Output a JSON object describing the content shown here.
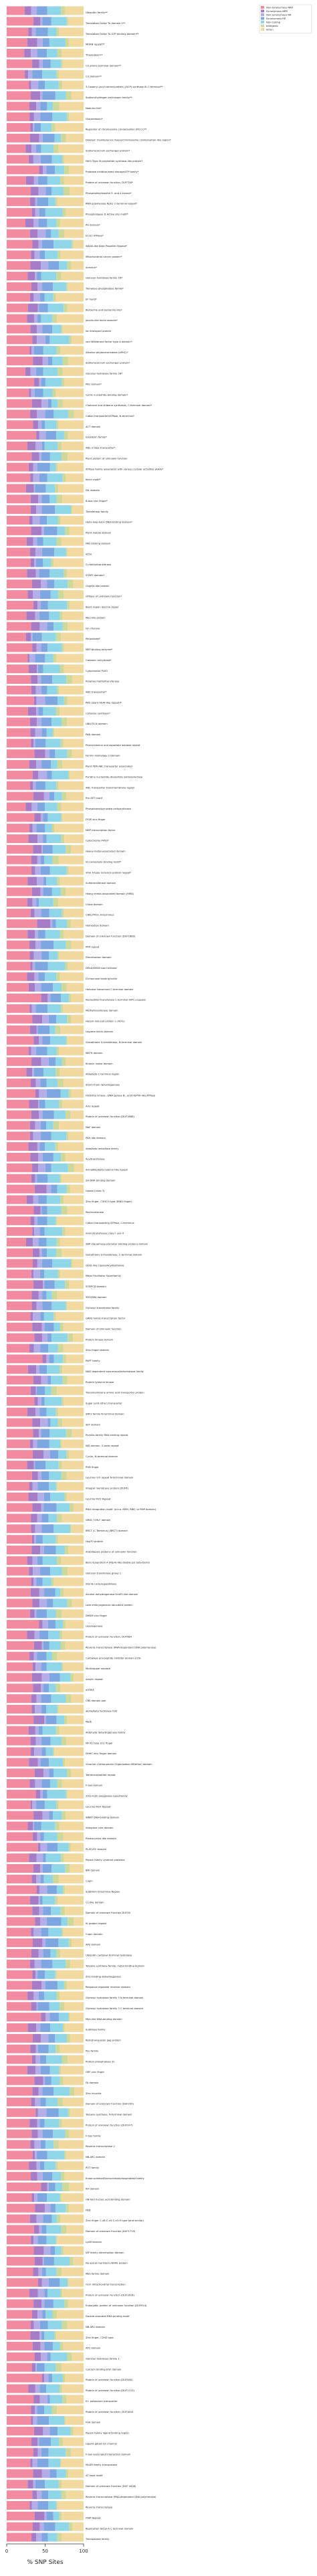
{
  "chart_data": {
    "type": "bar",
    "orientation": "horizontal",
    "stacked": true,
    "xlabel": "% SNP Sites",
    "xlim": [
      0,
      100
    ],
    "xticks": [
      0,
      50,
      100
    ],
    "legend_position": "top-right",
    "series": [
      {
        "name": "Non-synonymous NRR",
        "color": "#f28ba0"
      },
      {
        "name": "Synonymous NRR",
        "color": "#a67cc6"
      },
      {
        "name": "Non-synonymous RR",
        "color": "#b4aee8"
      },
      {
        "name": "Synonymous RR",
        "color": "#7ea6e0"
      },
      {
        "name": "Non-Coding",
        "color": "#8fd6e8"
      },
      {
        "name": "Intergenic",
        "color": "#cdd89a"
      },
      {
        "name": "Intron",
        "color": "#f1d9a0"
      }
    ],
    "categories": [
      "Ubiquitin family**",
      "Translation factor Tu domain 2**",
      "Translation factor Tu GTP binding domain**",
      "MORN repeat**",
      "Thioredoxin**",
      "Cir amino terminal domain**",
      "Cir domain**",
      "3-Oxoacyl-(acyl-carrier-protein) (ACP) synthase III C terminal**",
      "Sodium/hydrogen exchanger family**",
      "Nodulin-like*",
      "Glutaredoxin*",
      "Regulator of chromosome condensation (RCC1)**",
      "Deleted: maintenance (hypo)/chromosome condensation-like region*",
      "Sodium/calcium exchanger protein*",
      "FAE1/Type III polyketide synthase-like protein*",
      "Protease inhibitor/seed storage/LTP family*",
      "Protein of unknown function, DUF726*",
      "Phosphatidylinositol 3- and 4-kinase*",
      "RNA polymerase Rpb1 C-terminal repeat*",
      "Phospholipase D Active site motif*",
      "PH domain*",
      "E1-E2 ATPase*",
      "WD40-like Beta Propeller Repeat*",
      "Mitochondrial carrier protein*",
      "Annexin*",
      "Glycosyl hydrolase family 16*",
      "Trehalose-phosphatase family*",
      "EF hand*",
      "Berberine and berberine like*",
      "Jacalin-like lectin domain*",
      "Ion transport protein",
      "von Willebrand factor type A domain*",
      "Alkaline phytoceramidase (aPHC)*",
      "Sodium/calcium exchanger protein*",
      "Glycosyl hydrolase family 28*",
      "PB1 domain*",
      "Cyclic nucleotide-binding domain*",
      "Chalcone and stilbene synthases, C-terminal domain*",
      "Cation transporter/ATPase, N-terminus*",
      "ACT domain",
      "Exostosin family*",
      "ABC-2 type transporter*",
      "Plant protein of unknown function",
      "ATPase family associated with various cellular activities (AAA)*",
      "Kelch motif*",
      "DIL domain",
      "B-box zinc finger*",
      "Transferase family",
      "Helix-loop-helix DNA-binding domain*",
      "Plant mobile domain",
      "FAD binding domain",
      "Actin",
      "O-methyltransferase",
      "START domain*",
      "Ovgent-like protein",
      "GTPase of unknown function*",
      "Basic region leucine zipper",
      "Myo-like protein",
      "Ion channel",
      "Peroxidase*",
      "MIIP-binding enzyme*",
      "Carbonic anhydrase*",
      "Cytochrome P450",
      "Putative methyltransferase",
      "ABC transporter*",
      "PB5 (plant HEAT-like repeat)*",
      "Cellulose synthase*",
      "UBA/TS-N domain",
      "PAN domain",
      "Phenylalanine and aspartate oxidase repeat",
      "Formin Homology 2 Domain",
      "Plant PDR ABC transporter associated",
      "Pyridine nucleotide-disulphide oxidoreductase",
      "ABC transporter transmembrane region",
      "Pre-SET motif",
      "Phosphoenolpyruvate carboxykinase",
      "FYVE zinc finger",
      "NDP transcription factor",
      "Cytochrome P450*",
      "Heavy-metal-associated domain",
      "IQ calmodulin-binding motif*",
      "Viral A-type inclusion protein repeat*",
      "Sulfotransferase domain",
      "Heavy-metal-associated domain (HMA)",
      "U-box domain",
      "CRAL/TRIO, N-terminus",
      "Homeobox domain",
      "Domain of unknown function (DUF1669)",
      "PPR repeat",
      "Dimerisation domain",
      "DEAD/DEAH box helicase",
      "D-mannose binding lectin",
      "Helicase conserved C-terminal domain",
      "Nucleotidyl transferase C-terminal (NTC) repeats",
      "Methyltransferase domain",
      "Harpin-induced protein 1 (Hin1)",
      "Legume lectin domain",
      "Glutathione S-transferase, N-terminal domain",
      "MATH domain",
      "Kinesin motor domain",
      "Aldo/keto C terminal region",
      "Short-chain dehydrogenase",
      "Histidine kinase-, DNA gyrase B-, and HSP90-like ATPase",
      "Arm repeat",
      "Protein of unknown function (DUF1668)",
      "NAF domain",
      "PAH-like domain",
      "Aldo/keto reductase family",
      "Acyltransferase",
      "Armadillo/beta-catenin-like repeat",
      "SH-DNA binding domain",
      "Lipase (class 3)",
      "Zinc finger, C3HC4 type (RING finger)",
      "Pectinesterase",
      "Cation transporting ATPase, C-terminus",
      "Aminotransferase class I and II",
      "SBP (Squamosa-promoter binding protein) domain",
      "Glutathione S-transferase, C-terminal domain",
      "GDSL-like Lipase/Acylhydrolase",
      "Major Facilitator Superfamily",
      "STE/PCD domain",
      "YDG/SRA domain",
      "Glycosyl transferase family",
      "GRAS family transcription factor",
      "Domain of Unknown function",
      "Protein kinase domain",
      "Zinc-finger domain",
      "PAPT family",
      "NAD dependent epimerase/dehydratase family",
      "Protein tyrosine kinase",
      "Transmembrane amino acid transporter protein",
      "Sugar (and other) transporter",
      "SNF2 family N-terminal domain",
      "SET domain",
      "Pumilio-family RNA binding repeat",
      "WD domain, G-beta repeat",
      "Cyclin, N-terminal domain",
      "PHD finger",
      "Leucine rich repeat N-terminal domain",
      "Integral membrane protein (DUF6)",
      "Leucine Rich Repeat",
      "RNA recognition motif. (a.k.a. RRM, RBD, or RNP domain)",
      "GRID / VHLF domain",
      "BRCT (C Terminus) (BRCT) domain",
      "Hsp70 protein",
      "Arabidopsis proteins of unknown function",
      "Bens lipoprotein A (Rtp4)-like double psi beta-barrel",
      "Glycosyl transferase group 1",
      "Sterile carboxypeptidase",
      "Alcohol dehydrogenase GroES-like domain",
      "Late embryogenesis abundant protein",
      "DM4M zinc finger",
      "Lipoxygenase",
      "Protein of unknown function, DUF584",
      "Reverse transcriptase (RNA-dependent DNA polymerase)",
      "Carbatxys pro-peptide inhibitor domain (I29)",
      "Multicopper oxidase",
      "Amylin repeat",
      "mTERF",
      "CBS domain pair",
      "alpha/beta hydrolase fold",
      "MatE",
      "Aldehyde dehydrogenase family",
      "NF-X1 type zinc finger",
      "DHHC zinc finger domain",
      "Vinorine (Orthonomain Organisation MDeflon) domain",
      "Tetratricopeptide repeat",
      "F-box domain",
      "2OG-Fe(II) oxygenase superfamily",
      "Leucine Rich Repeat",
      "WRKY DNA-binding domain",
      "Integrase core domain",
      "Plastocyanin-like domain",
      "PLATLH2 domain",
      "Pepsin family cysteine protease",
      "BRI domain",
      "Cupin",
      "Subtilisin N-terminal Region",
      "C1-like domain",
      "Domain of unknown function DUF26",
      "IK protein repeat",
      "Cupin domain",
      "AP2 domain",
      "Ubiquitin carboxyl-terminal hydrolase",
      "Terpene synthase family, metal binding domain",
      "Zinc-binding dehydrogenase",
      "Response regulator receiver domain",
      "Glycosyl hydrolase family 3 N terminal domain",
      "Glycosyl hydrolase family 3 C terminal domain",
      "Myb-like DNA-binding domain",
      "Subtilase family",
      "Retrotransposon gag protein",
      "Pou family",
      "Protein phosphatase 2C",
      "GRF zinc finger",
      "FA domain",
      "Zinc knuckle",
      "Domain of unknown function (DUF295)",
      "Terpene synthase, N-terminal domain",
      "Protein of unknown function (DUF247)",
      "F-box family",
      "Reverse transcriptase 2",
      "NB-ARC domain",
      "POT family",
      "Endonuclease/Exonuclease/phosphatase family",
      "KH domain",
      "OB-fold nucleic acid binding domain",
      "FBD",
      "Zinc finger C-x8-C-x5-C-x3-H type (and similar)",
      "Domain of unknown function (DUF1719)",
      "LysM domain",
      "IAP family dimerisation domain",
      "No apical meristem (NAM) protein",
      "Myb family domain",
      "Ocm mitochondrial transcription",
      "Protein of unknown function (DUF1618)",
      "Eukaryotic protein of unknown function (DUF914)",
      "Double-stranded RNA binding motif",
      "NB-ARC domain",
      "Zinc finger, C2H2 type",
      "AP2 domain",
      "Glycosyl hydrolase family 1",
      "Calcium binding EGF domain",
      "Protein of unknown function (DUF580)",
      "Protein of unknown function (DUF1723)",
      "K+ potassium transporter",
      "Protein of unknown function, DUF1644",
      "FHA domain",
      "Pepsin family ligand binding region",
      "Ligand-gated ion channel",
      "F-box associated interaction domain",
      "MuDR family transposase",
      "AT hook motif",
      "Domain of unknown function (DUF 4006)",
      "Reverse transcriptase (RNA-dependent DNA polymerase)",
      "Reverse transcriptase",
      "FNIP Repeat",
      "Replication factor-A C terminal domain",
      "Transposase family"
    ]
  }
}
